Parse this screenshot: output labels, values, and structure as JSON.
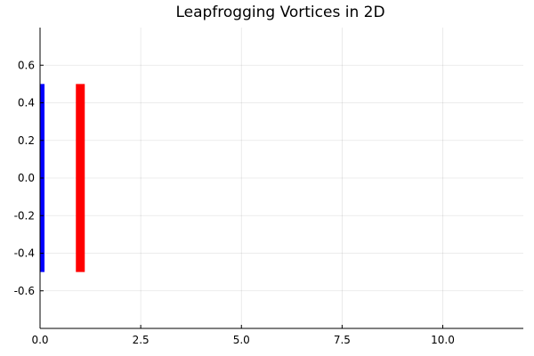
{
  "chart_data": {
    "type": "bar",
    "title": "Leapfrogging Vortices in 2D",
    "xlim": [
      0,
      12
    ],
    "ylim": [
      -0.8,
      0.8
    ],
    "xticks": [
      0,
      2.5,
      5,
      7.5,
      10
    ],
    "xtick_labels": [
      "0.0",
      "2.5",
      "5.0",
      "7.5",
      "10.0"
    ],
    "yticks": [
      -0.6,
      -0.4,
      -0.2,
      0,
      0.2,
      0.4,
      0.6
    ],
    "ytick_labels": [
      "-0.6",
      "-0.4",
      "-0.2",
      "0.0",
      "0.2",
      "0.4",
      "0.6"
    ],
    "grid": true,
    "legend": "none",
    "series": [
      {
        "color": "#0000ff",
        "x": 0.0,
        "y_min": -0.5,
        "y_max": 0.5
      },
      {
        "color": "#ff0000",
        "x": 1.0,
        "y_min": -0.5,
        "y_max": 0.5
      }
    ]
  }
}
